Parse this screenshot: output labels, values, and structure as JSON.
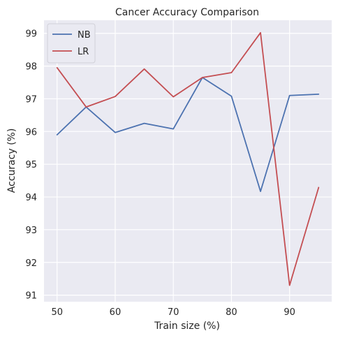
{
  "chart_data": {
    "type": "line",
    "title": "Cancer Accuracy Comparison",
    "xlabel": "Train size (%)",
    "ylabel": "Accuracy (%)",
    "x": [
      50,
      55,
      60,
      65,
      70,
      75,
      80,
      85,
      90,
      95
    ],
    "xlim": [
      47.75,
      97.25
    ],
    "ylim": [
      90.8,
      99.4
    ],
    "xticks": [
      50,
      60,
      70,
      80,
      90
    ],
    "yticks": [
      91,
      92,
      93,
      94,
      95,
      96,
      97,
      98,
      99
    ],
    "grid": true,
    "legend_position": "top-left",
    "series": [
      {
        "name": "NB",
        "color": "#4c72b0",
        "values": [
          95.9,
          96.75,
          95.97,
          96.25,
          96.08,
          97.65,
          97.08,
          94.17,
          97.1,
          97.14
        ]
      },
      {
        "name": "LR",
        "color": "#c44e52",
        "values": [
          97.95,
          96.75,
          97.07,
          97.91,
          97.06,
          97.65,
          97.8,
          99.02,
          91.3,
          94.29
        ]
      }
    ],
    "style": {
      "plot_background": "#eaeaf2",
      "grid_color": "#ffffff"
    }
  }
}
